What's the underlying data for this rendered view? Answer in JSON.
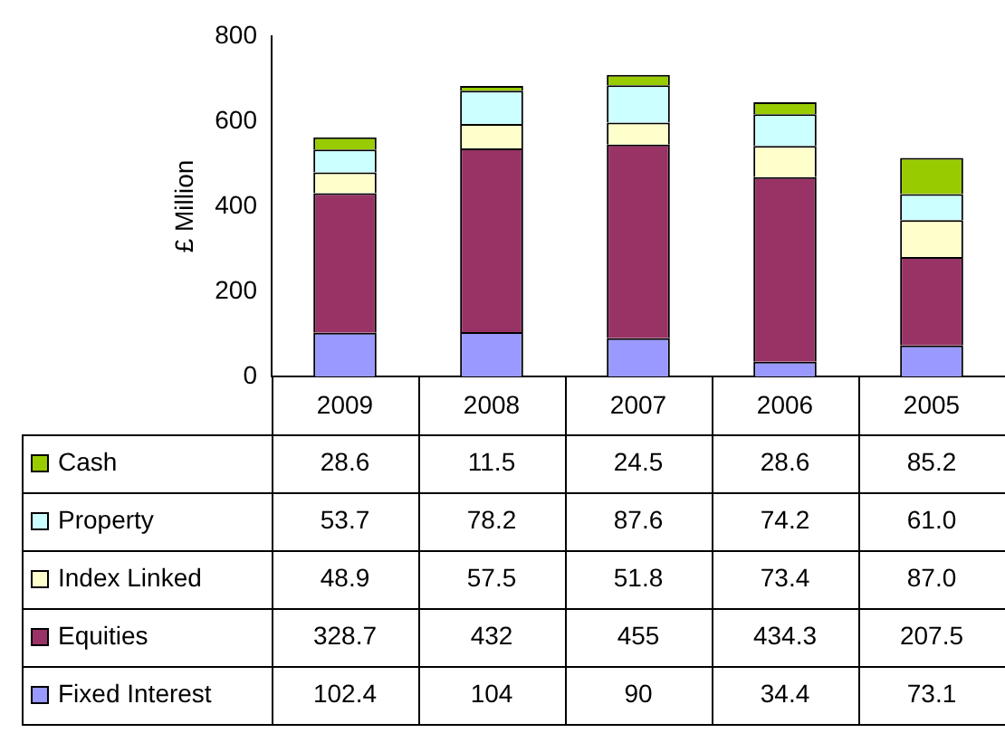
{
  "chart_data": {
    "type": "bar",
    "stacked": true,
    "ylabel": "£ Million",
    "categories": [
      "2009",
      "2008",
      "2007",
      "2006",
      "2005"
    ],
    "ylim": [
      0,
      800
    ],
    "yticks": [
      0,
      200,
      400,
      600,
      800
    ],
    "legend": "bottom left",
    "series": [
      {
        "name": "Fixed Interest",
        "color": "#9999ff",
        "values": [
          102.4,
          104,
          90,
          34.4,
          73.1
        ],
        "value_labels": [
          "102.4",
          "104",
          "90",
          "34.4",
          "73.1"
        ]
      },
      {
        "name": "Equities",
        "color": "#993366",
        "values": [
          328.7,
          432,
          455,
          434.3,
          207.5
        ],
        "value_labels": [
          "328.7",
          "432",
          "455",
          "434.3",
          "207.5"
        ]
      },
      {
        "name": "Index Linked",
        "color": "#ffffcc",
        "values": [
          48.9,
          57.5,
          51.8,
          73.4,
          87.0
        ],
        "value_labels": [
          "48.9",
          "57.5",
          "51.8",
          "73.4",
          "87.0"
        ]
      },
      {
        "name": "Property",
        "color": "#ccffff",
        "values": [
          53.7,
          78.2,
          87.6,
          74.2,
          61.0
        ],
        "value_labels": [
          "53.7",
          "78.2",
          "87.6",
          "74.2",
          "61.0"
        ]
      },
      {
        "name": "Cash",
        "color": "#99cc00",
        "values": [
          28.6,
          11.5,
          24.5,
          28.6,
          85.2
        ],
        "value_labels": [
          "28.6",
          "11.5",
          "24.5",
          "28.6",
          "85.2"
        ]
      }
    ]
  }
}
